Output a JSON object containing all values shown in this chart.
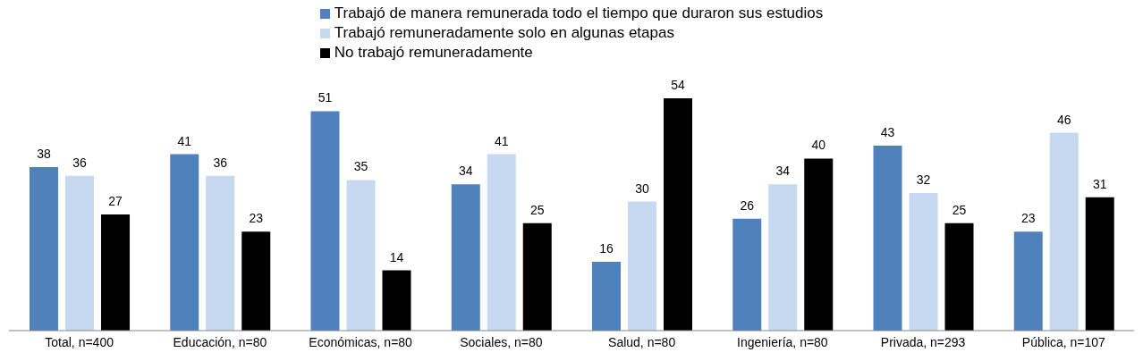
{
  "chart_data": {
    "type": "bar",
    "categories": [
      "Total, n=400",
      "Educación, n=80",
      "Económicas, n=80",
      "Sociales, n=80",
      "Salud, n=80",
      "Ingeniería, n=80",
      "Privada, n=293",
      "Pública, n=107"
    ],
    "series": [
      {
        "name": "Trabajó de manera remunerada todo el tiempo que duraron sus estudios",
        "color": "#4f81bd",
        "values": [
          38,
          41,
          51,
          34,
          16,
          26,
          43,
          23
        ]
      },
      {
        "name": "Trabajó remuneradamente solo en algunas etapas",
        "color": "#c6d9f1",
        "values": [
          36,
          36,
          35,
          41,
          30,
          34,
          32,
          46
        ]
      },
      {
        "name": "No trabajó remuneradamente",
        "color": "#000000",
        "values": [
          27,
          23,
          14,
          25,
          54,
          40,
          25,
          31
        ]
      }
    ],
    "data_labels": true,
    "grid": false,
    "legend": "top"
  }
}
